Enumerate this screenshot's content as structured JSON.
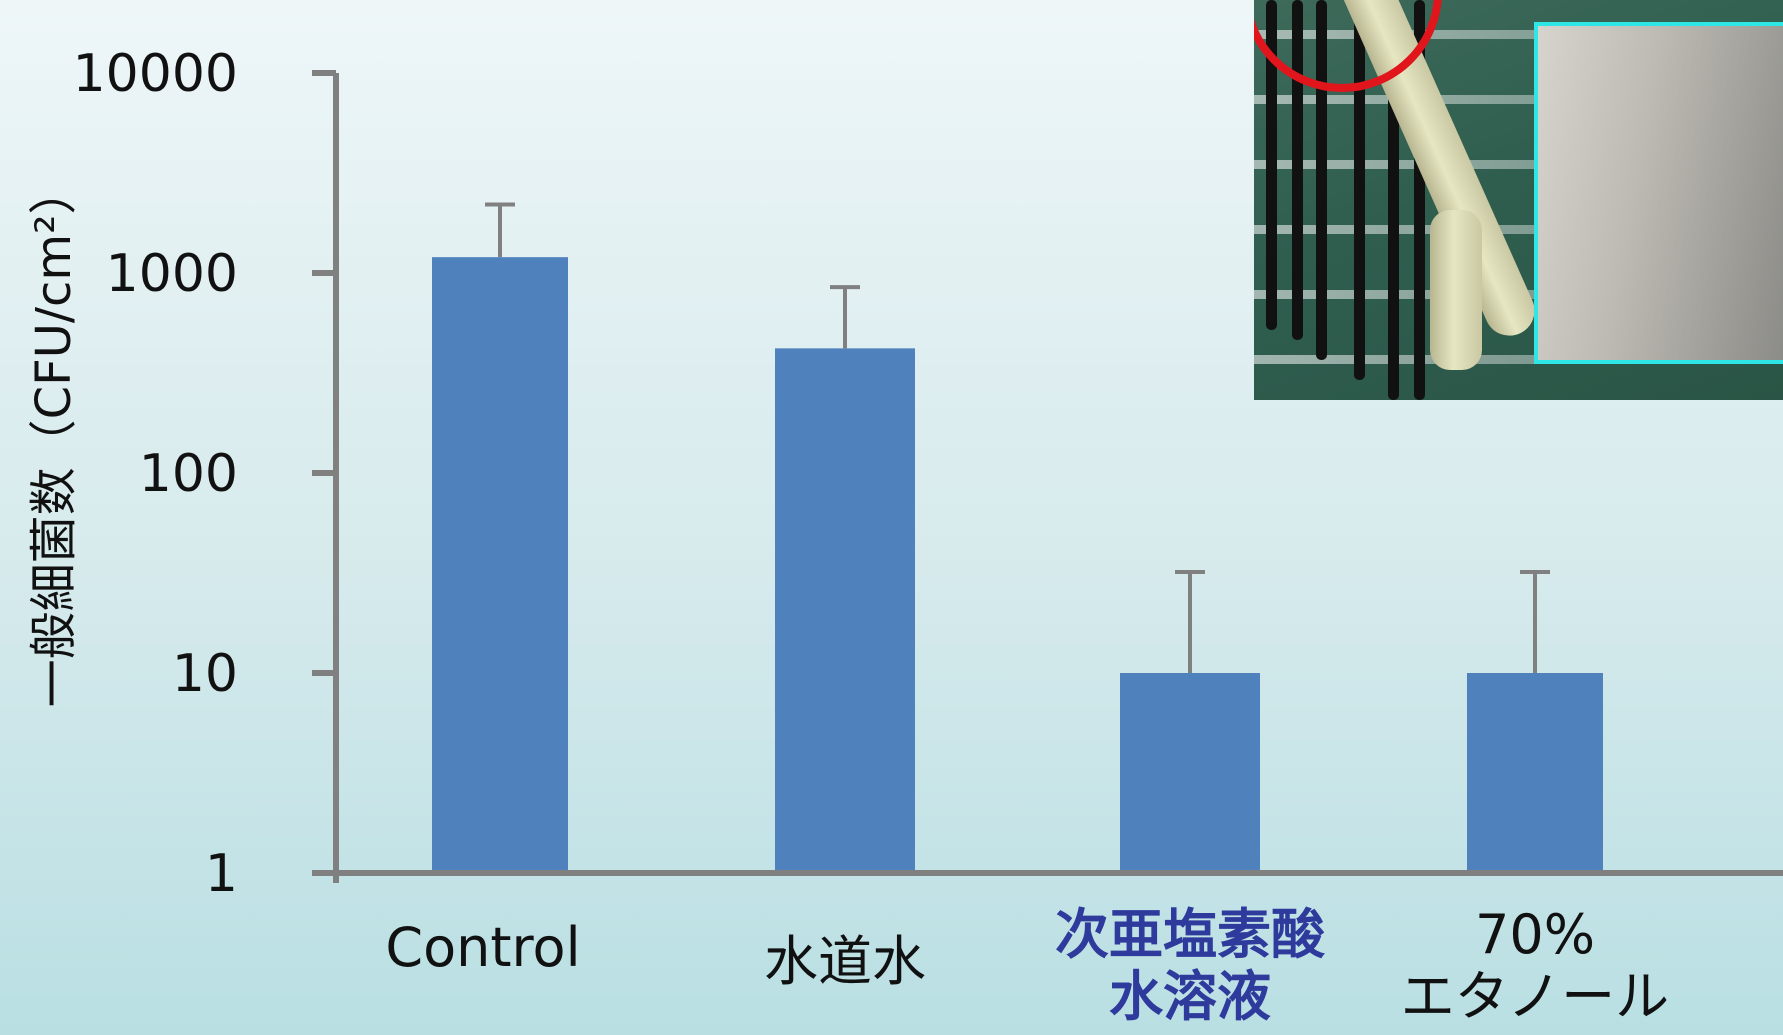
{
  "chart_data": {
    "type": "bar",
    "y_scale": "log",
    "ylabel": "一般細菌数（CFU/cm²）",
    "ylim": [
      1,
      10000
    ],
    "yticks": [
      1,
      10,
      100,
      1000,
      10000
    ],
    "ytick_labels": [
      "1",
      "10",
      "100",
      "1000",
      "10000"
    ],
    "categories": [
      {
        "lines": [
          "Control"
        ],
        "highlight": false
      },
      {
        "lines": [
          "水道水"
        ],
        "highlight": false
      },
      {
        "lines": [
          "次亜塩素酸",
          "水溶液"
        ],
        "highlight": true
      },
      {
        "lines": [
          "70%",
          "エタノール"
        ],
        "highlight": false
      }
    ],
    "values": [
      1200,
      420,
      10,
      10
    ],
    "error_upper": [
      2200,
      850,
      32,
      32
    ],
    "bar_color": "#4f81bd",
    "axis_color": "#808080",
    "error_color": "#808080",
    "highlight_color": "#2e3a9c"
  },
  "photo": {
    "subject": "stair handrail with close-up inset",
    "icon": "handrail-photo",
    "marker_color": "#e0161c",
    "inset_border_color": "#2fe6e6"
  }
}
